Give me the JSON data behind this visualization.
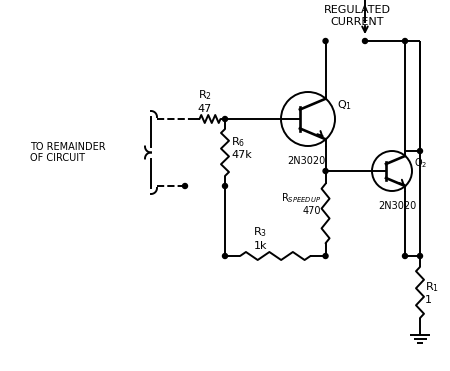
{
  "background_color": "#ffffff",
  "line_color": "#000000",
  "figsize": [
    4.5,
    3.71
  ],
  "dpi": 100,
  "regulated_current_text": "REGULATED\nCURRENT",
  "to_remainder_text": "TO REMAINDER\nOF CIRCUIT",
  "R2_text": "R$_2$\n47",
  "R6_text": "R$_6$\n47k",
  "R3_text": "R$_3$\n1k",
  "Rspeedup_text": "R$_{SPEEDUP}$\n470",
  "R1_text": "R$_1$\n1",
  "Q1_text": "Q$_1$",
  "Q2_text": "Q$_2$",
  "Q1_part": "2N3020",
  "Q2_part": "2N3020"
}
